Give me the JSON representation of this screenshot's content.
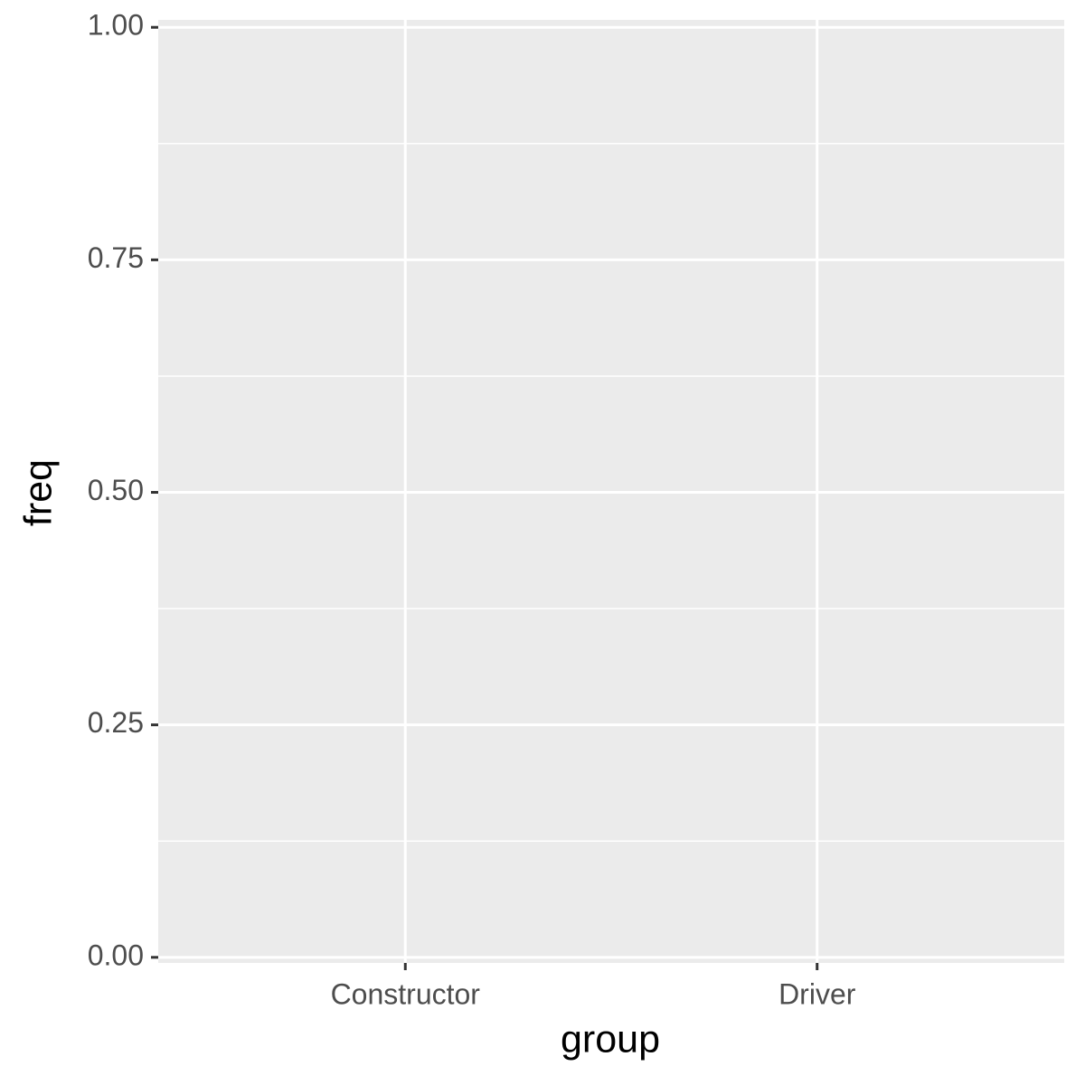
{
  "chart_data": {
    "type": "bar",
    "x_label": "group",
    "y_label": "freq",
    "categories": [
      "Constructor",
      "Driver"
    ],
    "ylim": [
      -0.006,
      1.008
    ],
    "yticks": [
      {
        "value": 0,
        "label": "0.00"
      },
      {
        "value": 0.25,
        "label": "0.25"
      },
      {
        "value": 0.5,
        "label": "0.50"
      },
      {
        "value": 0.75,
        "label": "0.75"
      },
      {
        "value": 1,
        "label": "1.00"
      }
    ],
    "yminorticks": [
      0.125,
      0.375,
      0.625,
      0.875
    ],
    "grid": true,
    "panel_color": "#ebebeb"
  }
}
